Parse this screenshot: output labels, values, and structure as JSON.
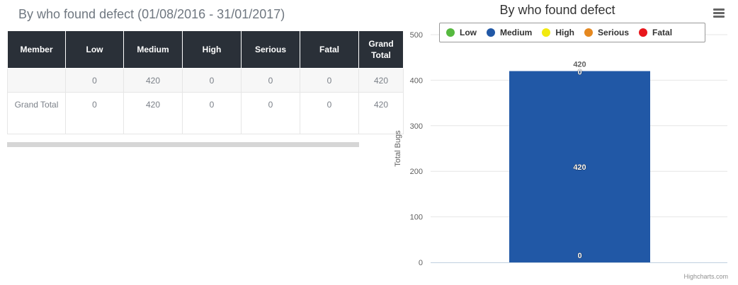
{
  "page_title": "By who found defect (01/08/2016 - 31/01/2017)",
  "table": {
    "headers": [
      "Member",
      "Low",
      "Medium",
      "High",
      "Serious",
      "Fatal",
      "Grand Total"
    ],
    "rows": [
      [
        "",
        "0",
        "420",
        "0",
        "0",
        "0",
        "420"
      ],
      [
        "Grand Total",
        "0",
        "420",
        "0",
        "0",
        "0",
        "420"
      ]
    ]
  },
  "chart_data": {
    "type": "bar",
    "stacked": true,
    "title": "By who found defect",
    "ylabel": "Total Bugs",
    "xlabel": "",
    "ylim": [
      0,
      500
    ],
    "yticks": [
      0,
      100,
      200,
      300,
      400,
      500
    ],
    "categories": [
      ""
    ],
    "legend_position": "top",
    "grid": true,
    "total_label": "420",
    "series": [
      {
        "name": "Low",
        "color": "#56b93f",
        "values": [
          0
        ]
      },
      {
        "name": "Medium",
        "color": "#2158a6",
        "values": [
          420
        ]
      },
      {
        "name": "High",
        "color": "#f2ea0e",
        "values": [
          0
        ]
      },
      {
        "name": "Serious",
        "color": "#e5881f",
        "values": [
          0
        ]
      },
      {
        "name": "Fatal",
        "color": "#e8161c",
        "values": [
          0
        ]
      }
    ],
    "data_labels": [
      "0",
      "420",
      "0"
    ]
  },
  "chart_menu_icon": "hamburger-menu-icon",
  "credits": "Highcharts.com"
}
